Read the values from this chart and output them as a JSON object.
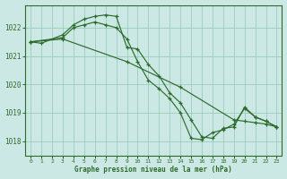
{
  "title": "Graphe pression niveau de la mer (hPa)",
  "background_color": "#cce8e4",
  "grid_color": "#99ccbb",
  "line_color": "#2d6b2d",
  "xlim": [
    -0.5,
    23.5
  ],
  "ylim": [
    1017.5,
    1022.8
  ],
  "yticks": [
    1018,
    1019,
    1020,
    1021,
    1022
  ],
  "xticks": [
    0,
    1,
    2,
    3,
    4,
    5,
    6,
    7,
    8,
    9,
    10,
    11,
    12,
    13,
    14,
    15,
    16,
    17,
    18,
    19,
    20,
    21,
    22,
    23
  ],
  "line1": {
    "x": [
      0,
      1,
      3,
      4,
      5,
      6,
      7,
      8,
      9,
      10,
      11,
      12,
      13,
      14,
      15,
      16,
      17,
      18,
      19,
      20,
      21,
      22,
      23
    ],
    "y": [
      1021.5,
      1021.45,
      1021.75,
      1022.1,
      1022.3,
      1022.4,
      1022.45,
      1022.4,
      1021.3,
      1021.25,
      1020.7,
      1020.3,
      1019.7,
      1019.35,
      1018.75,
      1018.15,
      1018.1,
      1018.45,
      1018.5,
      1019.2,
      1018.85,
      1018.7,
      1018.5
    ]
  },
  "line2": {
    "x": [
      0,
      3,
      9,
      14,
      19,
      20,
      21,
      22,
      23
    ],
    "y": [
      1021.5,
      1021.6,
      1020.8,
      1019.9,
      1018.75,
      1018.7,
      1018.65,
      1018.6,
      1018.5
    ]
  },
  "line3": {
    "x": [
      0,
      3,
      4,
      5,
      6,
      7,
      8,
      9,
      10,
      11,
      12,
      13,
      14,
      15,
      16,
      17,
      18,
      19,
      20,
      21,
      22,
      23
    ],
    "y": [
      1021.5,
      1021.65,
      1022.0,
      1022.1,
      1022.2,
      1022.1,
      1022.0,
      1021.6,
      1020.8,
      1020.15,
      1019.85,
      1019.5,
      1019.0,
      1018.1,
      1018.05,
      1018.3,
      1018.4,
      1018.6,
      1019.15,
      1018.85,
      1018.7,
      1018.5
    ]
  }
}
